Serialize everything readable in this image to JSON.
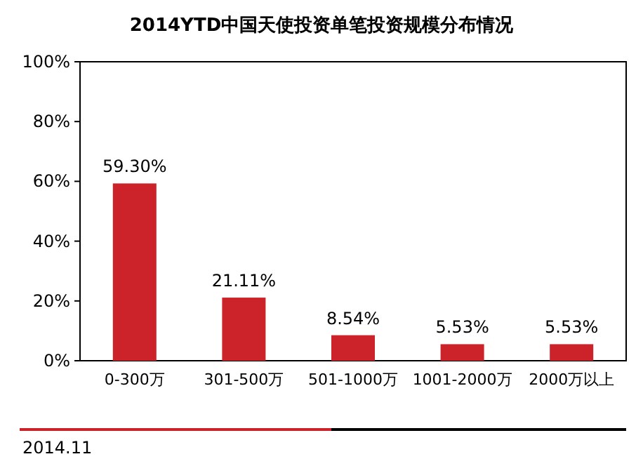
{
  "chart_data": {
    "type": "bar",
    "title": "2014YTD中国天使投资单笔投资规模分布情况",
    "categories": [
      "0-300万",
      "301-500万",
      "501-1000万",
      "1001-2000万",
      "2000万以上"
    ],
    "values": [
      59.3,
      21.11,
      8.54,
      5.53,
      5.53
    ],
    "value_labels": [
      "59.30%",
      "21.11%",
      "8.54%",
      "5.53%",
      "5.53%"
    ],
    "color": "#cc2229",
    "ylim": [
      0,
      100
    ],
    "yticks": [
      {
        "value": 0,
        "label": "0%"
      },
      {
        "value": 20,
        "label": "20%"
      },
      {
        "value": 40,
        "label": "40%"
      },
      {
        "value": 60,
        "label": "60%"
      },
      {
        "value": 80,
        "label": "80%"
      },
      {
        "value": 100,
        "label": "100%"
      }
    ],
    "grid": false,
    "annotations": [
      "2014.11"
    ]
  }
}
